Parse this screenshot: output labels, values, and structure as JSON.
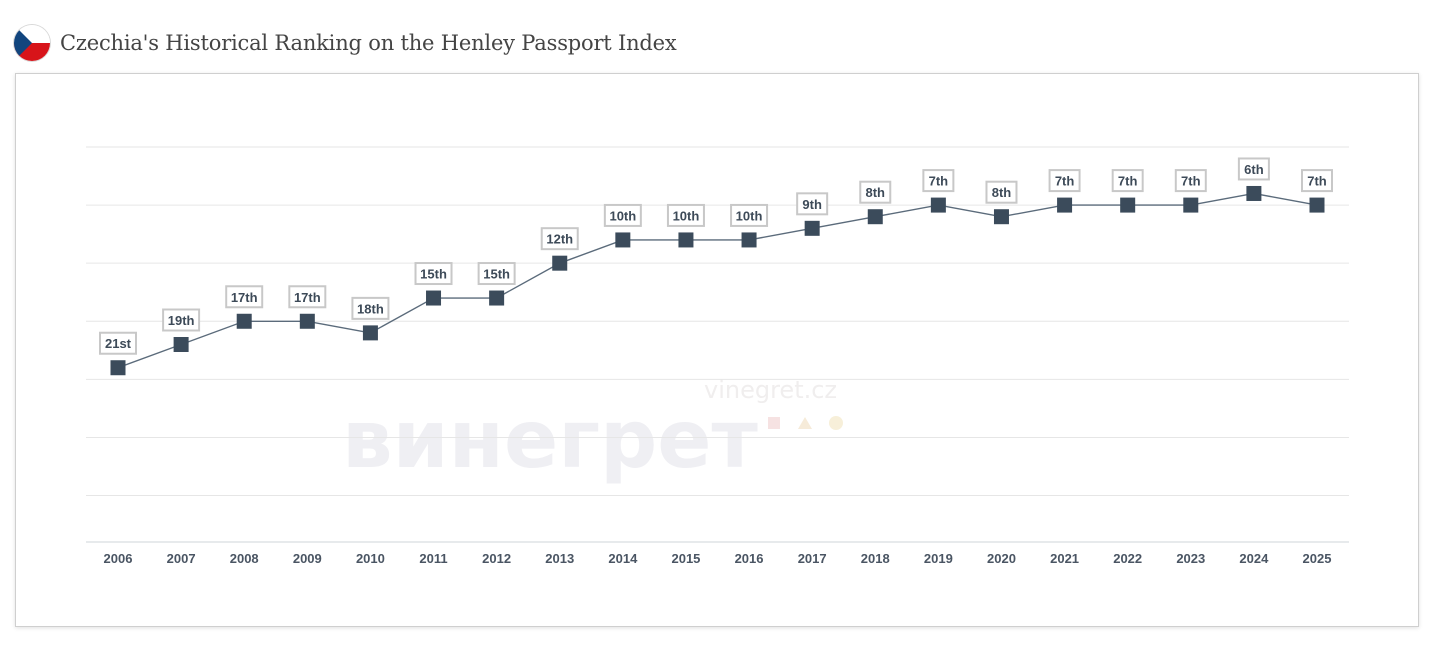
{
  "header": {
    "title": "Czechia's Historical Ranking on the Henley Passport Index",
    "flag_icon": "czech-flag-icon"
  },
  "watermark": {
    "logo_text": "винегрет",
    "site": "vinegret.cz"
  },
  "colors": {
    "line": "#5b6b7b",
    "marker": "#3b4b5b",
    "grid": "#e6e6e6",
    "label_border": "#c8c8c8",
    "flag_white": "#ffffff",
    "flag_red": "#d7141a",
    "flag_blue": "#11457e"
  },
  "chart_data": {
    "type": "line",
    "title": "",
    "xlabel": "",
    "ylabel": "",
    "x": [
      "2006",
      "2007",
      "2008",
      "2009",
      "2010",
      "2011",
      "2012",
      "2013",
      "2014",
      "2015",
      "2016",
      "2017",
      "2018",
      "2019",
      "2020",
      "2021",
      "2022",
      "2023",
      "2024",
      "2025"
    ],
    "series": [
      {
        "values": [
          21,
          19,
          17,
          17,
          18,
          15,
          15,
          12,
          10,
          10,
          10,
          9,
          8,
          7,
          8,
          7,
          7,
          7,
          6,
          7
        ],
        "labels": [
          "21st",
          "19th",
          "17th",
          "17th",
          "18th",
          "15th",
          "15th",
          "12th",
          "10th",
          "10th",
          "10th",
          "9th",
          "8th",
          "7th",
          "8th",
          "7th",
          "7th",
          "7th",
          "6th",
          "7th"
        ]
      }
    ],
    "y_inverted": true,
    "ylim": [
      36,
      2
    ],
    "grid": true,
    "legend": "none"
  }
}
